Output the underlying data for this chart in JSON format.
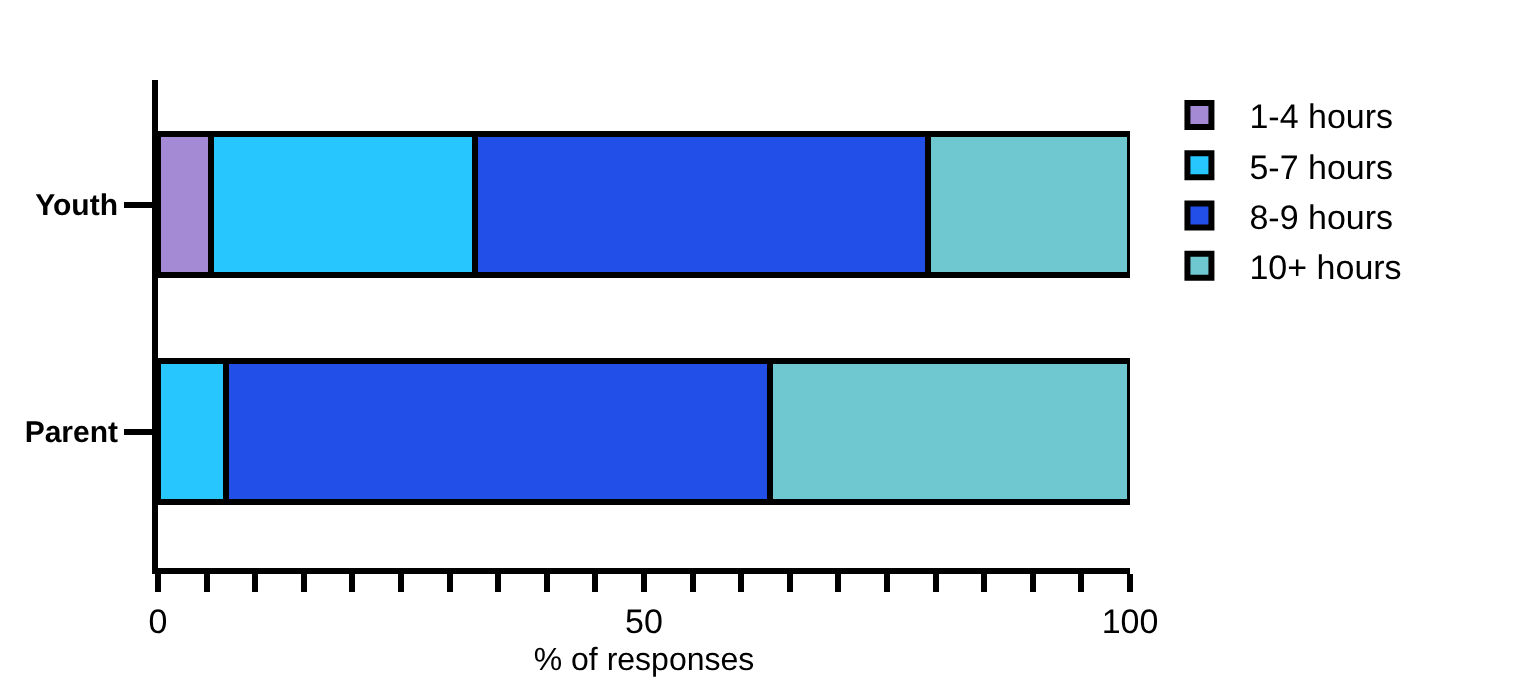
{
  "chart_data": {
    "type": "bar",
    "orientation": "horizontal",
    "stacked": true,
    "xlabel": "% of responses",
    "categories": [
      "Youth",
      "Parent"
    ],
    "series": [
      {
        "name": "1-4 hours",
        "color": "#a48ad4",
        "values": [
          5.5,
          0
        ]
      },
      {
        "name": "5-7 hours",
        "color": "#27c6fe",
        "values": [
          27.1,
          7
        ]
      },
      {
        "name": "8-9 hours",
        "color": "#224fe8",
        "values": [
          46.6,
          56
        ]
      },
      {
        "name": "10+ hours",
        "color": "#6fc8cf",
        "values": [
          20.8,
          37
        ]
      }
    ],
    "xlim": [
      0,
      100
    ],
    "xticks": [
      0,
      {
        "value": 5,
        "label": null
      },
      {
        "value": 10,
        "label": null
      },
      {
        "value": 15,
        "label": null
      },
      {
        "value": 20,
        "label": null
      },
      {
        "value": 25,
        "label": null
      },
      {
        "value": 30,
        "label": null
      },
      {
        "value": 35,
        "label": null
      },
      {
        "value": 40,
        "label": null
      },
      {
        "value": 45,
        "label": null
      },
      50,
      {
        "value": 55,
        "label": null
      },
      {
        "value": 60,
        "label": null
      },
      {
        "value": 65,
        "label": null
      },
      {
        "value": 70,
        "label": null
      },
      {
        "value": 75,
        "label": null
      },
      {
        "value": 80,
        "label": null
      },
      {
        "value": 85,
        "label": null
      },
      {
        "value": 90,
        "label": null
      },
      {
        "value": 95,
        "label": null
      },
      100
    ],
    "grid": false,
    "legend": "top right"
  }
}
